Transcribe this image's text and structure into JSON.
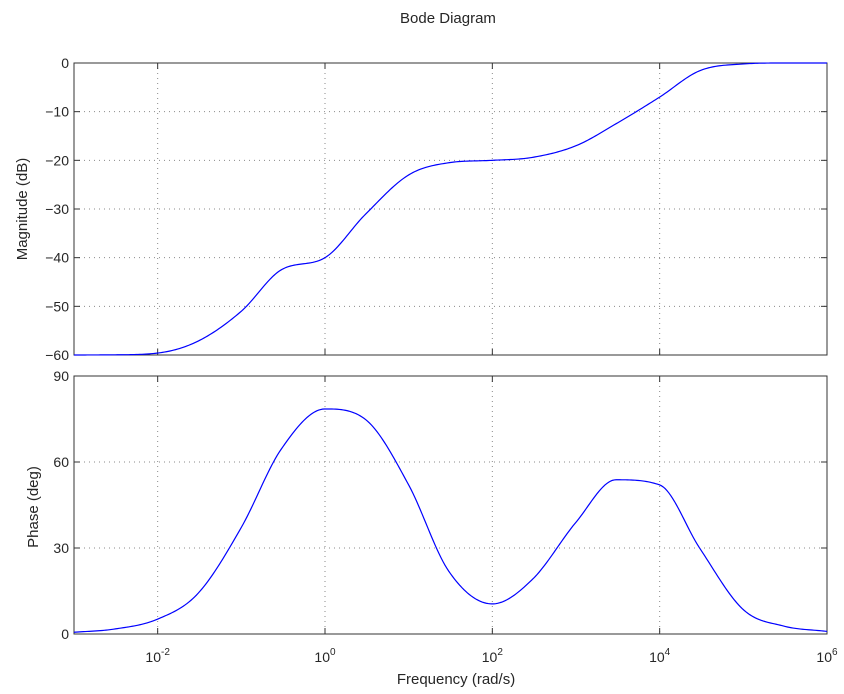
{
  "chart_data": {
    "type": "line",
    "title": "Bode Diagram",
    "xlabel": "Frequency  (rad/s)",
    "x_scale": "log",
    "xlim": [
      0.001,
      1000000
    ],
    "x_ticks": [
      {
        "value": 0.01,
        "base": "10",
        "exp": "-2"
      },
      {
        "value": 1,
        "base": "10",
        "exp": "0"
      },
      {
        "value": 100,
        "base": "10",
        "exp": "2"
      },
      {
        "value": 10000,
        "base": "10",
        "exp": "4"
      },
      {
        "value": 1000000,
        "base": "10",
        "exp": "6"
      }
    ],
    "grid": true,
    "line_color": "#0000ff",
    "panels": [
      {
        "id": "magnitude",
        "ylabel": "Magnitude (dB)",
        "ylim": [
          -60,
          0
        ],
        "y_ticks": [
          {
            "value": 0,
            "label": "0"
          },
          {
            "value": -10,
            "label": "−10"
          },
          {
            "value": -20,
            "label": "−20"
          },
          {
            "value": -30,
            "label": "−30"
          },
          {
            "value": -40,
            "label": "−40"
          },
          {
            "value": -50,
            "label": "−50"
          },
          {
            "value": -60,
            "label": "−60"
          }
        ],
        "series": [
          {
            "x": [
              0.001,
              0.003,
              0.01,
              0.03,
              0.1,
              0.3,
              1,
              3,
              10,
              30,
              100,
              300,
              1000,
              3000,
              10000,
              30000,
              100000,
              300000,
              1000000
            ],
            "y": [
              -60.0,
              -59.96,
              -59.6,
              -57.2,
              -51.0,
              -42.5,
              -40.0,
              -31.2,
              -23.0,
              -20.5,
              -20.0,
              -19.4,
              -17.0,
              -12.5,
              -7.0,
              -1.6,
              -0.2,
              0.0,
              0.0
            ]
          }
        ]
      },
      {
        "id": "phase",
        "ylabel": "Phase (deg)",
        "ylim": [
          0,
          90
        ],
        "y_ticks": [
          {
            "value": 0,
            "label": "0"
          },
          {
            "value": 30,
            "label": "30"
          },
          {
            "value": 60,
            "label": "60"
          },
          {
            "value": 90,
            "label": "90"
          }
        ],
        "series": [
          {
            "x": [
              0.001,
              0.003,
              0.01,
              0.03,
              0.1,
              0.3,
              1,
              3,
              10,
              30,
              100,
              300,
              1000,
              3000,
              10000,
              30000,
              100000,
              300000,
              1000000
            ],
            "y": [
              0.6,
              1.7,
              5.2,
              14.0,
              37.2,
              64.5,
              78.5,
              75.0,
              52.0,
              22.0,
              10.5,
              19.0,
              39.0,
              53.8,
              52.0,
              30.0,
              8.5,
              2.8,
              0.9
            ]
          }
        ]
      }
    ]
  }
}
